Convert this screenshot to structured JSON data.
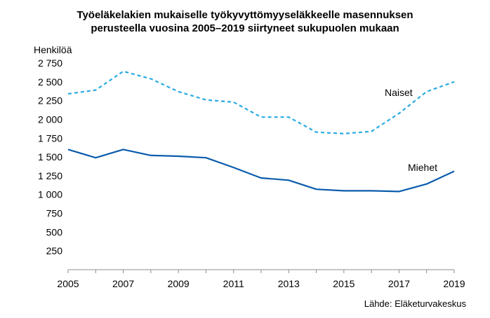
{
  "chart_data": {
    "type": "line",
    "title_line1": "Työeläkelakien mukaiselle työkyvyttömyyseläkkeelle masennuksen",
    "title_line2": "perusteella vuosina 2005–2019 siirtyneet sukupuolen mukaan",
    "ylabel": "Henkilöä",
    "source": "Lähde: Eläketurvakeskus",
    "x": [
      2005,
      2006,
      2007,
      2008,
      2009,
      2010,
      2011,
      2012,
      2013,
      2014,
      2015,
      2016,
      2017,
      2018,
      2019
    ],
    "xlim": [
      2005,
      2019
    ],
    "ylim": [
      0,
      2750
    ],
    "xticks": [
      {
        "value": 2005,
        "label": "2005"
      },
      {
        "value": 2007,
        "label": "2007"
      },
      {
        "value": 2009,
        "label": "2009"
      },
      {
        "value": 2011,
        "label": "2011"
      },
      {
        "value": 2013,
        "label": "2013"
      },
      {
        "value": 2015,
        "label": "2015"
      },
      {
        "value": 2017,
        "label": "2017"
      },
      {
        "value": 2019,
        "label": "2019"
      }
    ],
    "yticks": [
      {
        "value": 250,
        "label": "250"
      },
      {
        "value": 500,
        "label": "500"
      },
      {
        "value": 750,
        "label": "750"
      },
      {
        "value": 1000,
        "label": "1 000"
      },
      {
        "value": 1250,
        "label": "1 250"
      },
      {
        "value": 1500,
        "label": "1 500"
      },
      {
        "value": 1750,
        "label": "1 750"
      },
      {
        "value": 2000,
        "label": "2 000"
      },
      {
        "value": 2250,
        "label": "2 250"
      },
      {
        "value": 2500,
        "label": "2 500"
      },
      {
        "value": 2750,
        "label": "2 750"
      }
    ],
    "grid": false,
    "series": [
      {
        "name": "Naiset",
        "color": "#29abe2",
        "dash": "dashed",
        "values": [
          2340,
          2390,
          2640,
          2540,
          2370,
          2260,
          2230,
          2030,
          2030,
          1830,
          1810,
          1840,
          2080,
          2370,
          2500
        ]
      },
      {
        "name": "Miehet",
        "color": "#0b5cad",
        "dash": "solid",
        "values": [
          1600,
          1490,
          1600,
          1520,
          1510,
          1490,
          1360,
          1220,
          1190,
          1070,
          1050,
          1050,
          1040,
          1140,
          1310
        ]
      }
    ]
  }
}
